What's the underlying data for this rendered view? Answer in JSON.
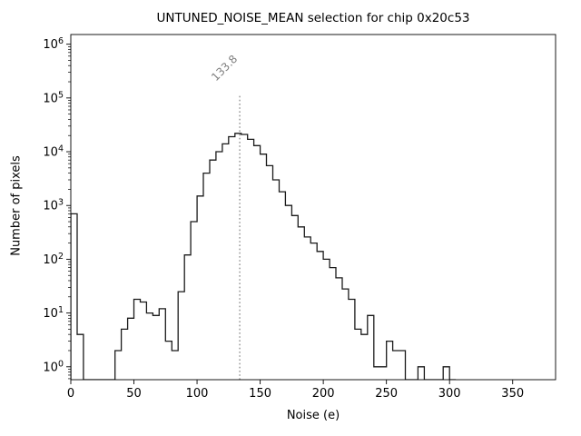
{
  "figure": {
    "title": "UNTUNED_NOISE_MEAN selection for chip 0x20c53",
    "xlabel": "Noise (e)",
    "ylabel": "Number of pixels"
  },
  "chart_data": {
    "type": "step-histogram",
    "title": "UNTUNED_NOISE_MEAN selection for chip 0x20c53",
    "xlabel": "Noise (e)",
    "ylabel": "Number of pixels",
    "y_scale": "log",
    "grid": false,
    "bin_width": 5,
    "bin_starts": [
      0,
      5,
      10,
      15,
      20,
      25,
      30,
      35,
      40,
      45,
      50,
      55,
      60,
      65,
      70,
      75,
      80,
      85,
      90,
      95,
      100,
      105,
      110,
      115,
      120,
      125,
      130,
      135,
      140,
      145,
      150,
      155,
      160,
      165,
      170,
      175,
      180,
      185,
      190,
      195,
      200,
      205,
      210,
      215,
      220,
      225,
      230,
      235,
      240,
      245,
      250,
      255,
      260,
      265,
      270,
      275,
      280,
      285,
      290,
      295,
      300
    ],
    "counts": [
      700,
      4,
      0,
      0,
      0,
      0,
      0,
      2,
      5,
      8,
      18,
      16,
      10,
      9,
      12,
      3,
      2,
      25,
      120,
      500,
      1500,
      4000,
      7000,
      10000,
      14000,
      19000,
      22000,
      21000,
      17000,
      13000,
      9000,
      5500,
      3000,
      1800,
      1000,
      650,
      400,
      260,
      200,
      140,
      100,
      70,
      45,
      28,
      18,
      5,
      4,
      9,
      1,
      1,
      3,
      2,
      2,
      0,
      0,
      1,
      0,
      0,
      0,
      1,
      0
    ],
    "xlim": [
      0,
      384
    ],
    "ylim_log10": [
      -0.24,
      6.18
    ],
    "x_ticks": [
      0,
      50,
      100,
      150,
      200,
      250,
      300,
      350
    ],
    "y_tick_exponents": [
      0,
      1,
      2,
      3,
      4,
      5,
      6
    ],
    "line_color": "#1a1a1a",
    "vline": {
      "x": 133.8,
      "label": "133.8",
      "color": "#7f7f7f",
      "style": "dotted",
      "top_log10": 5.05
    }
  }
}
